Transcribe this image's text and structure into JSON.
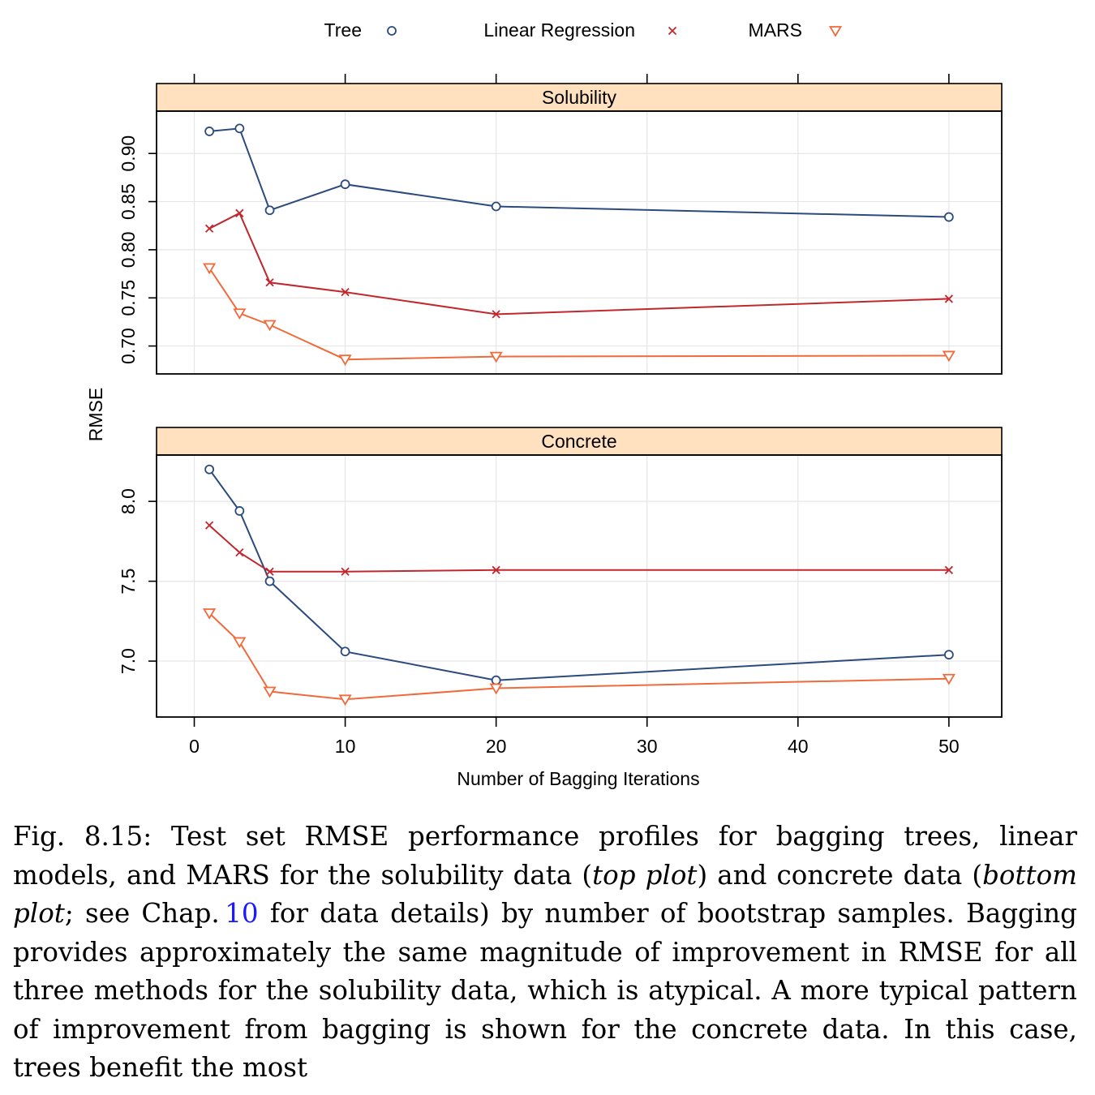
{
  "chart_data": {
    "type": "line",
    "xlabel": "Number of Bagging Iterations",
    "ylabel": "RMSE",
    "x_ticks": [
      0,
      10,
      20,
      30,
      40,
      50
    ],
    "xlim": [
      -2.5,
      53.5
    ],
    "grid": true,
    "legend_position": "top",
    "legend": [
      {
        "name": "Tree",
        "symbol": "circle",
        "color": "#2b4a7e"
      },
      {
        "name": "Linear Regression",
        "symbol": "cross",
        "color": "#c0282e"
      },
      {
        "name": "MARS",
        "symbol": "triangle-down",
        "color": "#f06a3a"
      }
    ],
    "panels": [
      {
        "title": "Solubility",
        "ylim": [
          0.671,
          0.944
        ],
        "y_ticks": [
          0.7,
          0.75,
          0.8,
          0.85,
          0.9
        ],
        "y_tick_labels": [
          "0.70",
          "0.75",
          "0.80",
          "0.85",
          "0.90"
        ],
        "x": [
          1,
          3,
          5,
          10,
          20,
          50
        ],
        "series": [
          {
            "name": "Tree",
            "values": [
              0.923,
              0.926,
              0.841,
              0.868,
              0.845,
              0.834
            ]
          },
          {
            "name": "Linear Regression",
            "values": [
              0.822,
              0.838,
              0.766,
              0.756,
              0.733,
              0.749
            ]
          },
          {
            "name": "MARS",
            "values": [
              0.781,
              0.734,
              0.722,
              0.686,
              0.689,
              0.69
            ]
          }
        ]
      },
      {
        "title": "Concrete",
        "ylim": [
          6.65,
          8.29
        ],
        "y_ticks": [
          7.0,
          7.5,
          8.0
        ],
        "y_tick_labels": [
          "7.0",
          "7.5",
          "8.0"
        ],
        "x": [
          1,
          3,
          5,
          10,
          20,
          50
        ],
        "series": [
          {
            "name": "Tree",
            "values": [
              8.2,
              7.94,
              7.5,
              7.06,
              6.88,
              7.04
            ]
          },
          {
            "name": "Linear Regression",
            "values": [
              7.85,
              7.68,
              7.56,
              7.56,
              7.57,
              7.57
            ]
          },
          {
            "name": "MARS",
            "values": [
              7.3,
              7.12,
              6.81,
              6.76,
              6.83,
              6.89
            ]
          }
        ]
      }
    ]
  },
  "caption": {
    "label": "Fig. 8.15:",
    "part1": "Test set RMSE performance profiles for bagging trees, linear models, and MARS for the solubility data (",
    "italic1": "top plot",
    "part2": ") and concrete data (",
    "italic2": "bottom plot",
    "part3": "; see Chap.",
    "ref": "10",
    "part4": "for data details) by number of bootstrap samples. Bagging provides approximately the same magnitude of improvement in RMSE for all three methods for the solubility data, which is atypical. A more typical pattern of improvement from bagging is shown for the concrete data. In this case, trees benefit the most"
  }
}
